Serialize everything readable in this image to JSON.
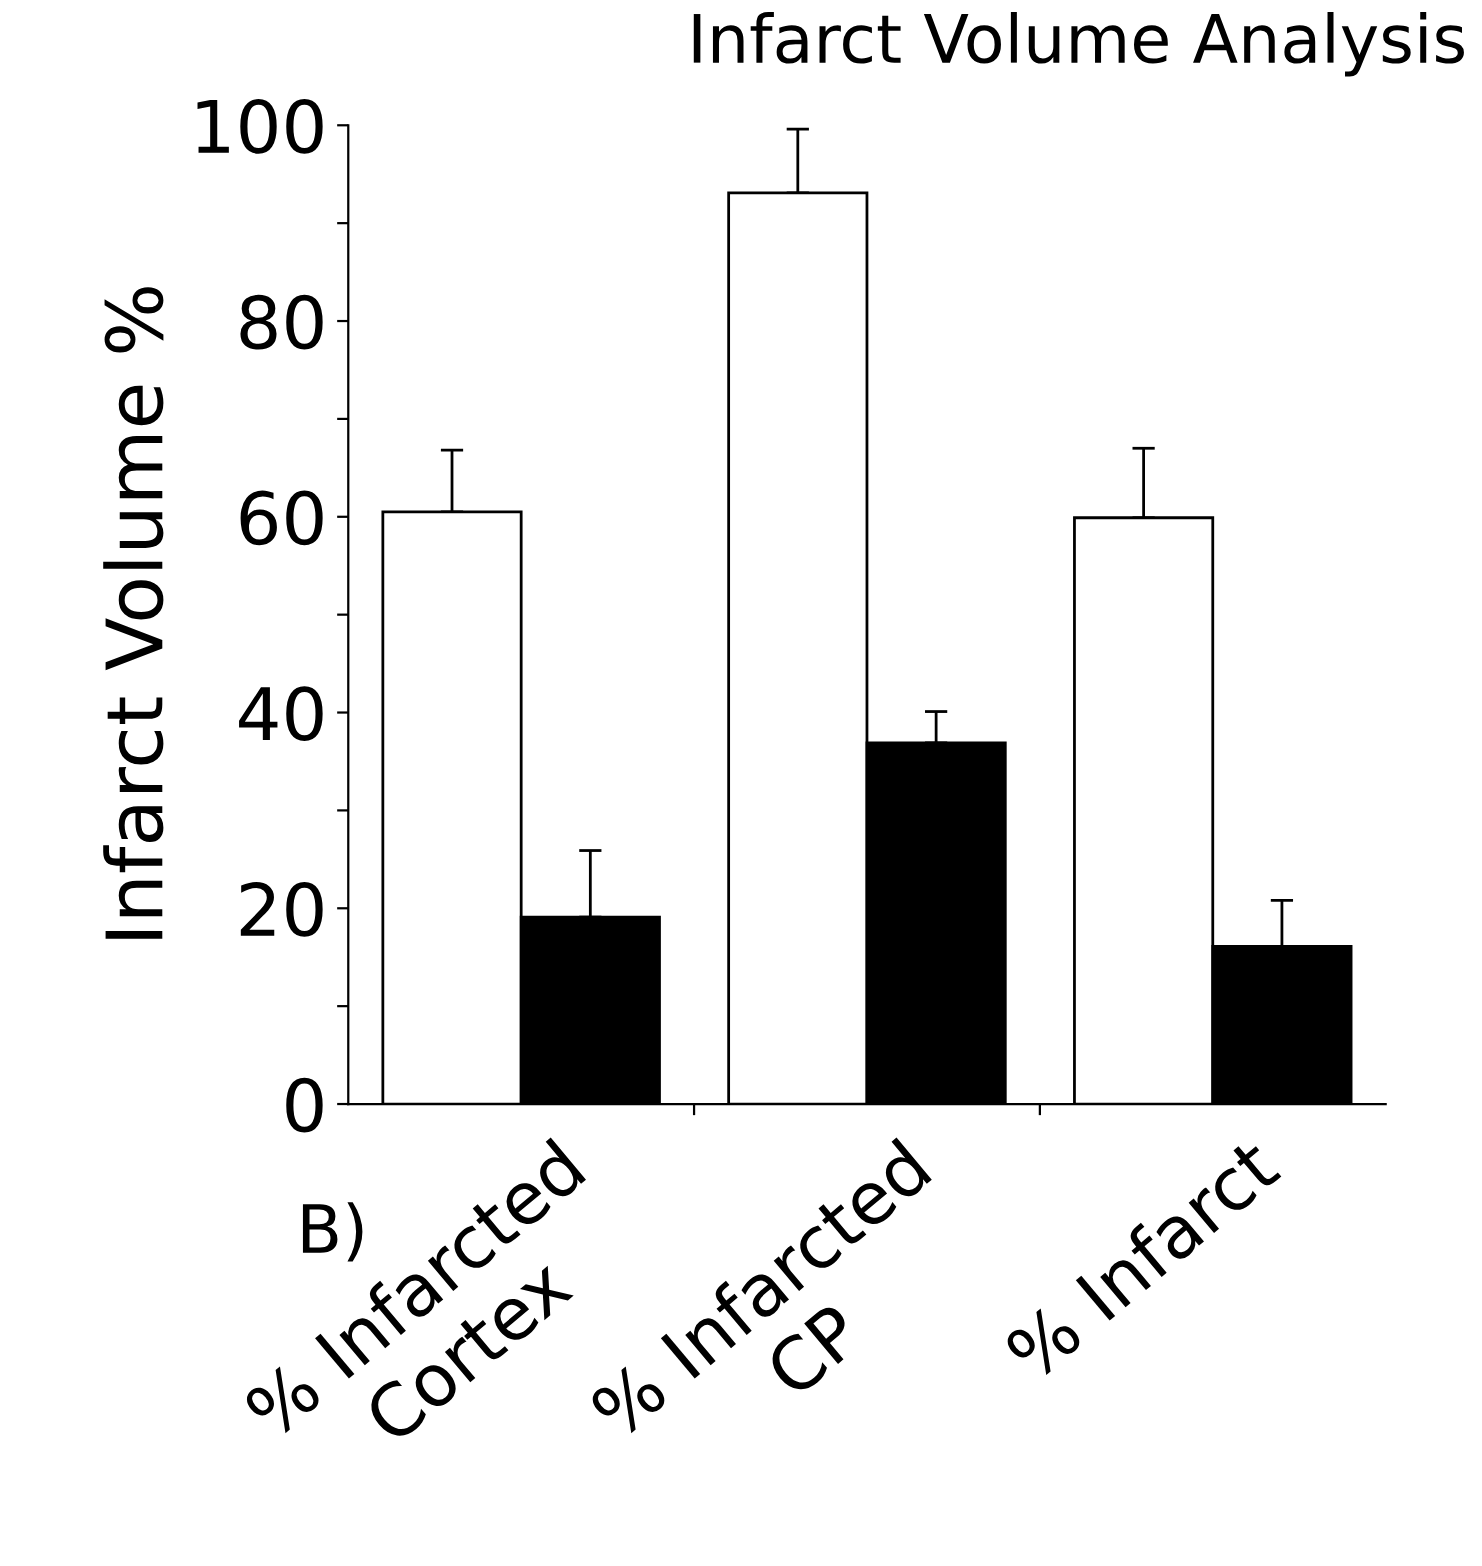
{
  "chart_data": {
    "type": "bar",
    "title": "Infarct Volume Analysis",
    "ylabel": "Infarct Volume %",
    "categories": [
      "% Infarcted\nCortex",
      "% Infarcted\nCP",
      "% Infarct"
    ],
    "series": [
      {
        "color": "#ffffff",
        "values": [
          60.5,
          93.1,
          59.9
        ],
        "errors": [
          [
            60.5,
            66.8
          ],
          [
            93.1,
            99.6
          ],
          [
            59.9,
            67.0
          ]
        ]
      },
      {
        "color": "#000000",
        "values": [
          19.1,
          36.9,
          16.1
        ],
        "errors": [
          [
            19.1,
            25.9
          ],
          [
            36.9,
            40.1
          ],
          [
            16.1,
            20.8
          ]
        ]
      }
    ],
    "ylim": [
      0,
      100
    ],
    "yticks": [
      0,
      {
        "value": 10,
        "label": null
      },
      20,
      {
        "value": 30,
        "label": null
      },
      40,
      {
        "value": 50,
        "label": null
      },
      60,
      {
        "value": 70,
        "label": null
      },
      80,
      {
        "value": 90,
        "label": null
      },
      100
    ],
    "annotations": [
      "B)"
    ],
    "grid": false,
    "legend": false
  }
}
